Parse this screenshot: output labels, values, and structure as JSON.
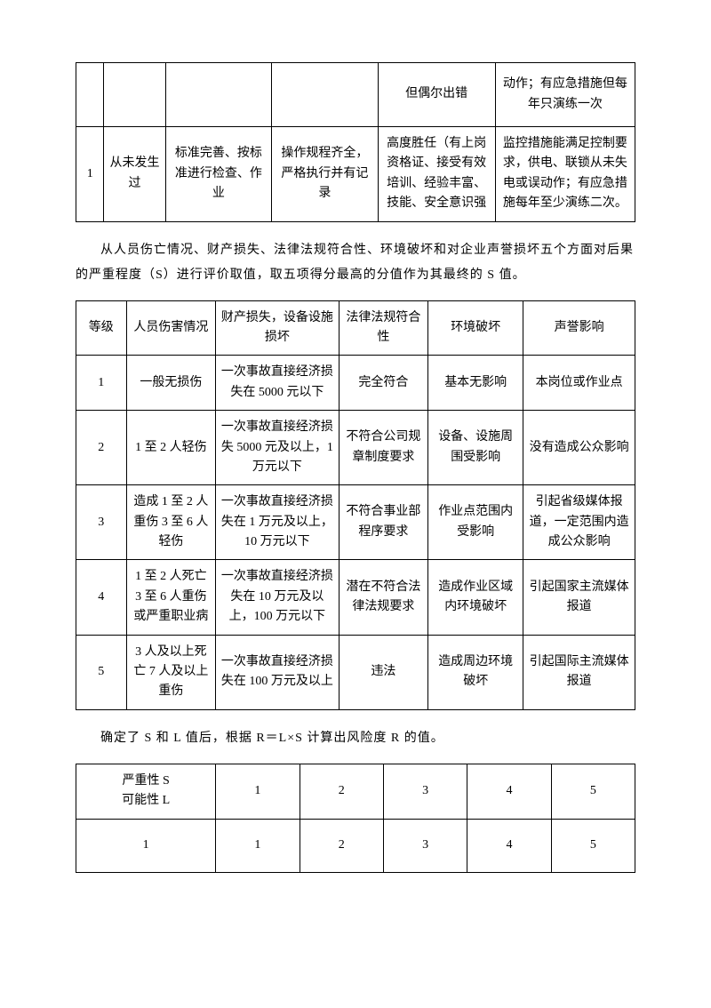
{
  "table1": {
    "rows": [
      {
        "c0": "",
        "c1": "",
        "c2": "",
        "c3": "",
        "c4": "但偶尔出错",
        "c5": "动作；有应急措施但每年只演练一次"
      },
      {
        "c0": "1",
        "c1": "从未发生过",
        "c2": "标准完善、按标准进行检查、作业",
        "c3": "操作规程齐全，严格执行并有记录",
        "c4": "高度胜任（有上岗资格证、接受有效培训、经验丰富、技能、安全意识强",
        "c5": "监控措施能满足控制要求，供电、联锁从未失电或误动作；有应急措施每年至少演练二次。"
      }
    ]
  },
  "para1": "从人员伤亡情况、财产损失、法律法规符合性、环境破坏和对企业声誉损坏五个方面对后果的严重程度（S）进行评价取值，取五项得分最高的分值作为其最终的 S 值。",
  "table2": {
    "header": [
      "等级",
      "人员伤害情况",
      "财产损失，设备设施损坏",
      "法律法规符合性",
      "环境破坏",
      "声誉影响"
    ],
    "rows": [
      {
        "c0": "1",
        "c1": "一般无损伤",
        "c2": "一次事故直接经济损失在 5000 元以下",
        "c3": "完全符合",
        "c4": "基本无影响",
        "c5": "本岗位或作业点"
      },
      {
        "c0": "2",
        "c1": "1 至 2 人轻伤",
        "c2": "一次事故直接经济损失 5000 元及以上，1 万元以下",
        "c3": "不符合公司规章制度要求",
        "c4": "设备、设施周围受影响",
        "c5": "没有造成公众影响"
      },
      {
        "c0": "3",
        "c1": "造成 1 至 2 人重伤 3 至 6 人轻伤",
        "c2": "一次事故直接经济损失在 1 万元及以上，10 万元以下",
        "c3": "不符合事业部程序要求",
        "c4": "作业点范围内受影响",
        "c5": "引起省级媒体报道，一定范围内造成公众影响"
      },
      {
        "c0": "4",
        "c1": "1 至 2 人死亡\n3 至 6 人重伤或严重职业病",
        "c2": "一次事故直接经济损失在 10 万元及以上，100 万元以下",
        "c3": "潜在不符合法律法规要求",
        "c4": "造成作业区域内环境破坏",
        "c5": "引起国家主流媒体报道"
      },
      {
        "c0": "5",
        "c1": "3 人及以上死亡 7 人及以上重伤",
        "c2": "一次事故直接经济损失在 100 万元及以上",
        "c3": "违法",
        "c4": "造成周边环境破坏",
        "c5": "引起国际主流媒体报道"
      }
    ]
  },
  "para2": "确定了 S 和 L 值后，根据 R＝L×S 计算出风险度 R 的值。",
  "table3": {
    "header_label1": "严重性 S",
    "header_label2": "可能性 L",
    "cols": [
      "1",
      "2",
      "3",
      "4",
      "5"
    ],
    "rows": [
      {
        "label": "1",
        "vals": [
          "1",
          "2",
          "3",
          "4",
          "5"
        ]
      }
    ]
  }
}
